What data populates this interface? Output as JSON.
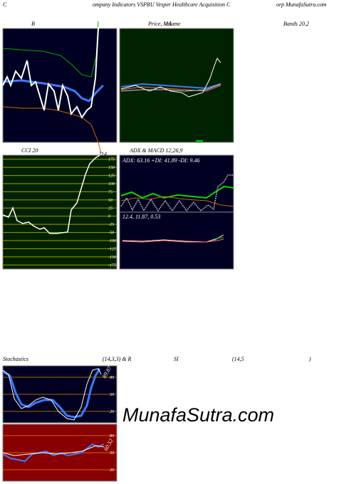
{
  "header": {
    "left": "C",
    "middle": "ompany Indicators VSPRU Vesper Healthcare  Acquisition  C",
    "right": "orp MunafaSutra.com"
  },
  "bollinger": {
    "title": "B",
    "title_right": "Bands 20,2"
  },
  "price": {
    "title": "Price,  MA",
    "title_overlay": "Volume"
  },
  "cci": {
    "title": "CCI 20",
    "last": "214",
    "ticks": [
      175,
      150,
      125,
      100,
      75,
      50,
      25,
      0,
      -25,
      -50,
      -100,
      -125,
      -150,
      -175
    ]
  },
  "adx": {
    "title": "ADX  & MACD 12,26,9",
    "readout": "ADX: 63.16  +DI: 41.89 -DI: 9.46"
  },
  "macd": {
    "readout": "12.4,  11.87,  0.53"
  },
  "stochastics": {
    "title": "Stochastics",
    "params": "(14,3,3) & R",
    "params2": "SI",
    "params3": "(14,5",
    "params4": ")",
    "ticks": [
      80,
      50,
      20
    ],
    "last": "89.87"
  },
  "rsi": {
    "ticks": [
      80,
      50,
      20
    ],
    "last": "60.52"
  },
  "watermark": "MunafaSutra.com"
}
